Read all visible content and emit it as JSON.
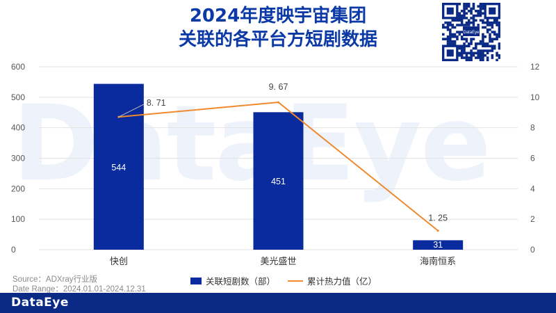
{
  "header": {
    "title_line1": "2024年度映宇宙集团",
    "title_line2": "关联的各平台方短剧数据"
  },
  "watermark": "DataEye",
  "qr_logo_text": "DataEye",
  "source": {
    "line1": "Source：ADXray行业版",
    "line2": "Date Range：2024.01.01-2024.12.31"
  },
  "footer": {
    "logo": "DataEye"
  },
  "colors": {
    "bar": "#0a2b9e",
    "line": "#f08a2d",
    "title": "#0b3aa6",
    "footer": "#0a2a86"
  },
  "chart_data": {
    "type": "bar",
    "categories": [
      "快创",
      "美光盛世",
      "海南恒系"
    ],
    "series": [
      {
        "name": "关联短剧数（部）",
        "type": "bar",
        "axis": "left",
        "values": [
          544,
          451,
          31
        ]
      },
      {
        "name": "累计热力值（亿）",
        "type": "line",
        "axis": "right",
        "values": [
          8.71,
          9.67,
          1.25
        ]
      }
    ],
    "value_labels_bar": [
      "544",
      "451",
      "31"
    ],
    "value_labels_line": [
      "8. 71",
      "9. 67",
      "1. 25"
    ],
    "ylim_left": [
      0,
      600
    ],
    "yticks_left": [
      "0",
      "100",
      "200",
      "300",
      "400",
      "500",
      "600"
    ],
    "ylim_right": [
      0,
      12
    ],
    "yticks_right": [
      "0",
      "2",
      "4",
      "6",
      "8",
      "10",
      "12"
    ],
    "grid": true,
    "legend": "bottom"
  }
}
